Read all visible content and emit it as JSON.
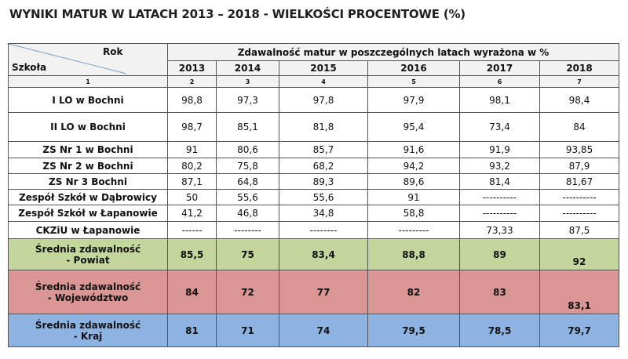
{
  "title": "WYNIKI MATUR W LATACH 2013 – 2018 - WIELKOŚCI PROCENTOWE (%)",
  "header": {
    "rok": "Rok",
    "szkola": "Szkoła",
    "group": "Zdawalność matur w poszczególnych latach wyrażona w %",
    "years": [
      "2013",
      "2014",
      "2015",
      "2016",
      "2017",
      "2018"
    ],
    "col_numbers": [
      "1",
      "2",
      "3",
      "4",
      "5",
      "6",
      "7"
    ]
  },
  "rows": [
    {
      "school": "I LO w Bochni",
      "values": [
        "98,8",
        "97,3",
        "97,8",
        "97,9",
        "98,1",
        "98,4"
      ]
    },
    {
      "school": "II LO w Bochni",
      "values": [
        "98,7",
        "85,1",
        "81,8",
        "95,4",
        "73,4",
        "84"
      ]
    },
    {
      "school": "ZS Nr 1 w Bochni",
      "values": [
        "91",
        "80,6",
        "85,7",
        "91,6",
        "91,9",
        "93,85"
      ]
    },
    {
      "school": "ZS Nr 2 w Bochni",
      "values": [
        "80,2",
        "75,8",
        "68,2",
        "94,2",
        "93,2",
        "87,9"
      ]
    },
    {
      "school": "ZS Nr 3  Bochni",
      "values": [
        "87,1",
        "64,8",
        "89,3",
        "89,6",
        "81,4",
        "81,67"
      ]
    },
    {
      "school": "Zespół Szkół w Dąbrowicy",
      "values": [
        "50",
        "55,6",
        "55,6",
        "91",
        "----------",
        "----------"
      ]
    },
    {
      "school": "Zespół Szkół w Łapanowie",
      "values": [
        "41,2",
        "46,8",
        "34,8",
        "58,8",
        "----------",
        "----------"
      ]
    },
    {
      "school": "CKZiU w Łapanowie",
      "values": [
        "------",
        "--------",
        "--------",
        "---------",
        "73,33",
        "87,5"
      ]
    }
  ],
  "averages": [
    {
      "line1": "Średnia zdawalność",
      "line2": "- Powiat",
      "values": [
        "85,5",
        "75",
        "83,4",
        "88,8",
        "89",
        "92"
      ],
      "color": "#c3d69b"
    },
    {
      "line1": "Średnia zdawalność",
      "line2": "- Województwo",
      "values": [
        "84",
        "72",
        "77",
        "82",
        "83",
        "83,1"
      ],
      "color": "#d99694"
    },
    {
      "line1": "Średnia zdawalność",
      "line2": "- Kraj",
      "values": [
        "81",
        "71",
        "74",
        "79,5",
        "78,5",
        "79,7"
      ],
      "color": "#8db3e2"
    }
  ]
}
